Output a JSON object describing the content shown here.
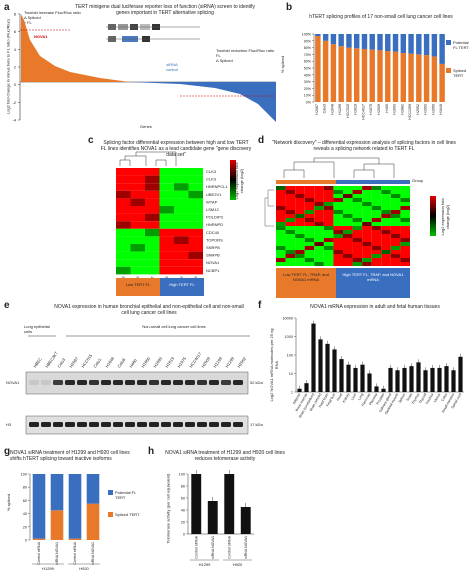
{
  "panels": {
    "a": {
      "label": "a",
      "title": "TERT minigene dual luciferase reporter loss of function (siRNA) screen to identify genes important in TERT alternative splicing",
      "ylabel": "Log2 fold change in minus beta to FL ratio (Fluc/Rluc)",
      "xlabel": "Genes",
      "left_note": "Twofold increase Fluc/Rluc ratio\nΔ Spliced\n↑ FL",
      "right_note": "Twofold reduction Fluc/Rluc ratio\nFL\nΔ Spliced",
      "nova1_label": "NOVA1",
      "sirna_label": "siRNA control",
      "colors": {
        "increase": "#e8792a",
        "decrease": "#3a6fbf"
      },
      "ylim": [
        -4,
        8
      ],
      "yticks": [
        "8",
        "6",
        "4",
        "2",
        "0",
        "-2",
        "-4"
      ]
    },
    "b": {
      "label": "b",
      "title": "hTERT splicing profiles of 17 non-small cell lung cancer cell lines",
      "ylabel": "% spliced",
      "yticks": [
        "100%",
        "90%",
        "80%",
        "70%",
        "60%",
        "50%",
        "40%",
        "30%",
        "20%",
        "10%",
        "0%"
      ],
      "legend": [
        "Potential FL TERT",
        "Spliced TERT"
      ]
    },
    "c": {
      "label": "c",
      "title": "Splicing factor differential expression between high and low TERT FL lines identifies NOVA1 as a lead candidate gene \"gene discovery data set\"",
      "genes": [
        "CLK3",
        "CLK3",
        "HNRNPCL1",
        "UBE2V1",
        "WTAP",
        "LSM12",
        "POLDIP3",
        "HNRNPD",
        "CDC40",
        "TOPORS",
        "SNRPB",
        "SNRPB",
        "NOVA1",
        "NCBP1"
      ],
      "lines": [
        "Calu3",
        "H2009",
        "H2087",
        "H1993",
        "H1299",
        "H1703"
      ],
      "low": "Low TERT FL",
      "high": "High TERT FL",
      "scale_label": "Log2 expression fold change (log2)",
      "scale_ticks": [
        "2",
        "1",
        "0",
        "-1",
        "-2"
      ]
    },
    "d": {
      "label": "d",
      "title": "\"Network discovery\" – differential expression analysis of splicing factors in cell lines reveals a splicing network related to TERT FL",
      "group_label": "Group",
      "low": "Low TERT FL, TRAP, and NOVA1 mRNA",
      "high": "High TERT FL, TRAP, and NOVA1 mRNA",
      "scale_label": "Log2 expression fold change (log2)"
    },
    "e": {
      "label": "e",
      "title": "NOVA1 expression in human bronchial epithelial and non-epithelial cell and non-small cell lung cancer cell lines",
      "group1": "Lung epithelial cells",
      "group2": "Non-small cell lung cancer cell lines",
      "lanes": [
        "HBEC",
        "HBEC3KT",
        "Calu3",
        "H2087",
        "HCC515",
        "Calu1",
        "H1648",
        "Calu6",
        "H460",
        "H1650",
        "H1693",
        "H1819",
        "H1975",
        "HCC4017",
        "H2009",
        "H1299",
        "H1299",
        "H2052"
      ],
      "row1": "NOVA1",
      "row2": "H3",
      "kda1": "52 kDa",
      "kda2": "17 kDa"
    },
    "f": {
      "label": "f",
      "title": "NOVA1 mRNA expression in adult and fetal human tissues",
      "ylabel": "Log2 NOVA1 mRNA molecules per 25 ng RNA",
      "yticks": [
        "10000",
        "1000",
        "100",
        "10",
        "1"
      ]
    },
    "g": {
      "label": "g",
      "title": "NOVA1 siRNA treatment of H1299 and H920 cell lines shifts hTERT splicing toward inactive isoforms",
      "ylabel": "% spliced",
      "legend": [
        "Potential FL TERT",
        "Spliced TERT"
      ],
      "groups": [
        "H1299",
        "H920"
      ],
      "yticks": [
        "100",
        "80",
        "60",
        "40",
        "20",
        "0"
      ]
    },
    "h": {
      "label": "h",
      "title": "NOVA1 siRNA treatment of H1299 and H920 cell lines reduces telomerase activity",
      "ylabel": "Telomerase activity (per cell equivalent)",
      "groups": [
        "H1299",
        "H920"
      ],
      "yticks": [
        "100",
        "80",
        "60",
        "40",
        "20",
        "0"
      ]
    }
  },
  "chart_data": [
    {
      "type": "bar",
      "title": "hTERT splicing profiles of 17 non-small cell lung cancer cell lines",
      "categories": [
        "H2087",
        "Calu3",
        "H1648",
        "H1299",
        "HCC515",
        "H1819",
        "HCC4017",
        "H1975",
        "H2009",
        "H460",
        "H1693",
        "H2882",
        "HCC1359",
        "H2052",
        "H1993",
        "H1650",
        "H1648"
      ],
      "series": [
        {
          "name": "Spliced TERT",
          "values": [
            97,
            90,
            85,
            82,
            80,
            79,
            78,
            77,
            76,
            75,
            74,
            72,
            71,
            70,
            69,
            67,
            56
          ]
        },
        {
          "name": "Potential FL TERT",
          "values": [
            3,
            10,
            15,
            18,
            20,
            21,
            22,
            23,
            24,
            25,
            26,
            28,
            29,
            30,
            31,
            33,
            44
          ]
        }
      ],
      "ylim": [
        0,
        100
      ]
    },
    {
      "type": "bar",
      "title": "NOVA1 mRNA expression in adult and fetal human tissues",
      "categories": [
        "Adipose",
        "Bone marrow",
        "Brain (cerebellum)",
        "Brain (whole)",
        "Fetal brain",
        "Fetal liver",
        "Heart",
        "Kidney",
        "Liver",
        "Lung",
        "Pancreas",
        "Placenta",
        "Prostate",
        "Salivary gland",
        "Skeletal muscle",
        "Spleen",
        "Testis",
        "Thymus",
        "Thyroid",
        "Trachea",
        "Uterus",
        "Colon",
        "Small intestine",
        "Spinal cord"
      ],
      "values": [
        1.5,
        3,
        5000,
        700,
        400,
        200,
        60,
        30,
        20,
        30,
        10,
        2,
        1.5,
        20,
        15,
        20,
        25,
        40,
        15,
        20,
        20,
        25,
        15,
        80
      ],
      "ylim": [
        1,
        10000
      ]
    },
    {
      "type": "bar",
      "title": "NOVA1 siRNA treatment of H1299 and H920 cell lines shifts hTERT splicing",
      "categories": [
        "Control siRNA",
        "siRNA NOVA1",
        "Control siRNA",
        "siRNA NOVA1"
      ],
      "series": [
        {
          "name": "Spliced TERT",
          "values": [
            2,
            45,
            2,
            55
          ]
        },
        {
          "name": "Potential FL TERT",
          "values": [
            98,
            55,
            98,
            45
          ]
        }
      ],
      "ylim": [
        0,
        100
      ]
    },
    {
      "type": "bar",
      "title": "NOVA1 siRNA treatment of H1299 and H920 cell lines reduces telomerase activity",
      "categories": [
        "Control siRNA",
        "siRNA NOVA1",
        "Control siRNA",
        "siRNA NOVA1"
      ],
      "values": [
        100,
        55,
        100,
        45
      ],
      "ylim": [
        0,
        120
      ]
    }
  ]
}
